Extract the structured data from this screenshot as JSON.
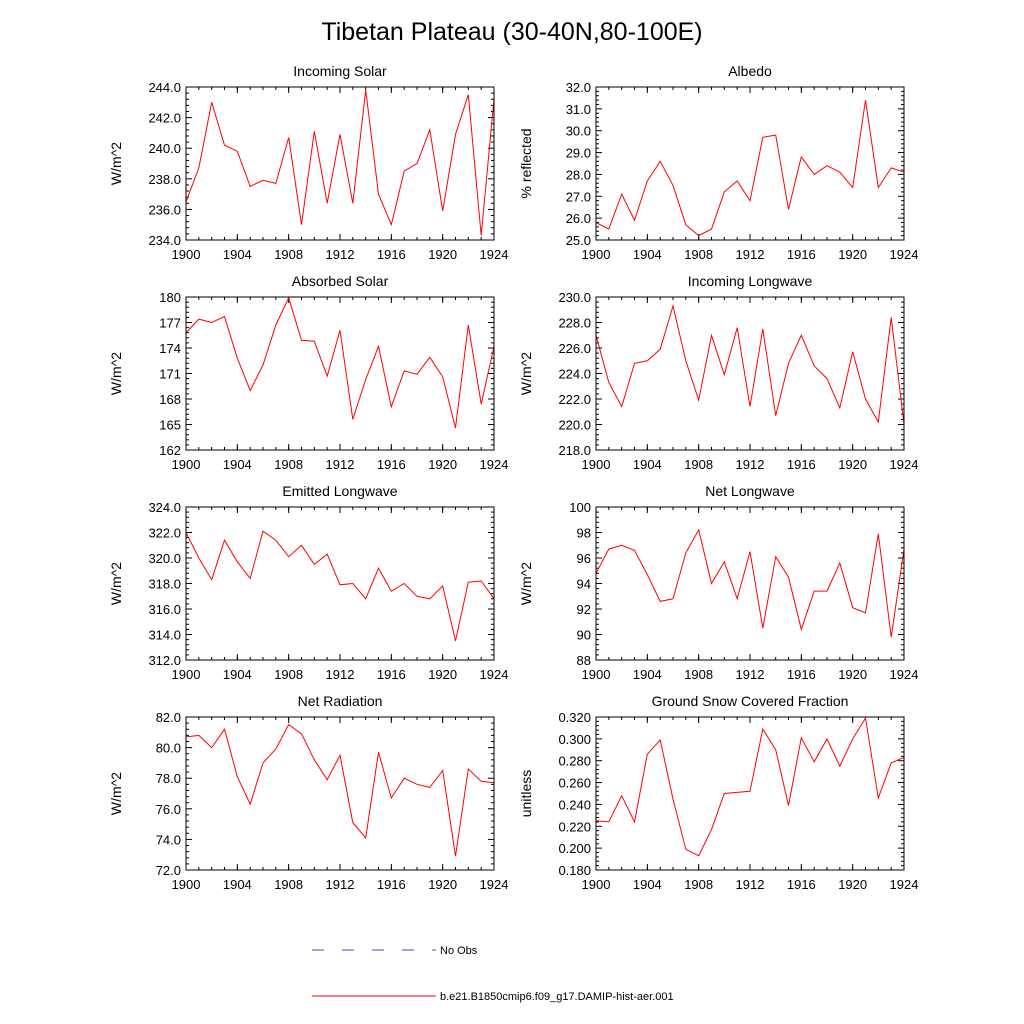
{
  "figure": {
    "title": "Tibetan Plateau (30-40N,80-100E)",
    "legend": [
      {
        "label": "No Obs",
        "color": "#3b4fb8",
        "style": "dashed"
      },
      {
        "label": "b.e21.B1850cmip6.f09_g17.DAMIP-hist-aer.001",
        "color": "#ff0000",
        "style": "solid"
      }
    ]
  },
  "chart_data": [
    {
      "type": "line",
      "title": "Incoming Solar",
      "ylabel": "W/m^2",
      "xlim": [
        1900,
        1924
      ],
      "ylim": [
        234,
        244
      ],
      "xticks": [
        "1900",
        "1904",
        "1908",
        "1912",
        "1916",
        "1920",
        "1924"
      ],
      "yticks": [
        "234.0",
        "236.0",
        "238.0",
        "240.0",
        "242.0",
        "244.0"
      ],
      "x": [
        1900,
        1901,
        1902,
        1903,
        1904,
        1905,
        1906,
        1907,
        1908,
        1909,
        1910,
        1911,
        1912,
        1913,
        1914,
        1915,
        1916,
        1917,
        1918,
        1919,
        1920,
        1921,
        1922,
        1923,
        1924
      ],
      "series": [
        {
          "color": "#ff0000",
          "values": [
            236.5,
            238.7,
            243.0,
            240.2,
            239.8,
            237.5,
            237.9,
            237.7,
            240.7,
            235.0,
            241.1,
            236.4,
            240.9,
            236.4,
            243.8,
            237.0,
            235.0,
            238.5,
            239.0,
            241.2,
            235.9,
            240.9,
            243.5,
            234.3,
            243.2
          ]
        }
      ]
    },
    {
      "type": "line",
      "title": "Albedo",
      "ylabel": "% reflected",
      "xlim": [
        1900,
        1924
      ],
      "ylim": [
        25,
        32
      ],
      "xticks": [
        "1900",
        "1904",
        "1908",
        "1912",
        "1916",
        "1920",
        "1924"
      ],
      "yticks": [
        "25.0",
        "26.0",
        "27.0",
        "28.0",
        "29.0",
        "30.0",
        "31.0",
        "32.0"
      ],
      "x": [
        1900,
        1901,
        1902,
        1903,
        1904,
        1905,
        1906,
        1907,
        1908,
        1909,
        1910,
        1911,
        1912,
        1913,
        1914,
        1915,
        1916,
        1917,
        1918,
        1919,
        1920,
        1921,
        1922,
        1923,
        1924
      ],
      "series": [
        {
          "color": "#ff0000",
          "values": [
            25.8,
            25.5,
            27.1,
            25.9,
            27.7,
            28.6,
            27.5,
            25.7,
            25.2,
            25.5,
            27.2,
            27.7,
            26.8,
            29.7,
            29.8,
            26.4,
            28.8,
            28.0,
            28.4,
            28.1,
            27.4,
            31.4,
            27.4,
            28.3,
            28.1
          ]
        }
      ]
    },
    {
      "type": "line",
      "title": "Absorbed Solar",
      "ylabel": "W/m^2",
      "xlim": [
        1900,
        1924
      ],
      "ylim": [
        162,
        180
      ],
      "xticks": [
        "1900",
        "1904",
        "1908",
        "1912",
        "1916",
        "1920",
        "1924"
      ],
      "yticks": [
        "162",
        "165",
        "168",
        "171",
        "174",
        "177",
        "180"
      ],
      "x": [
        1900,
        1901,
        1902,
        1903,
        1904,
        1905,
        1906,
        1907,
        1908,
        1909,
        1910,
        1911,
        1912,
        1913,
        1914,
        1915,
        1916,
        1917,
        1918,
        1919,
        1920,
        1921,
        1922,
        1923,
        1924
      ],
      "series": [
        {
          "color": "#ff0000",
          "values": [
            175.8,
            177.4,
            177.0,
            177.7,
            172.8,
            169.0,
            172.0,
            176.7,
            179.9,
            174.9,
            174.8,
            170.7,
            176.1,
            165.6,
            170.3,
            174.2,
            167.1,
            171.3,
            170.9,
            172.9,
            170.6,
            164.6,
            176.7,
            167.4,
            174.2
          ]
        }
      ]
    },
    {
      "type": "line",
      "title": "Incoming Longwave",
      "ylabel": "W/m^2",
      "xlim": [
        1900,
        1924
      ],
      "ylim": [
        218,
        230
      ],
      "xticks": [
        "1900",
        "1904",
        "1908",
        "1912",
        "1916",
        "1920",
        "1924"
      ],
      "yticks": [
        "218.0",
        "220.0",
        "222.0",
        "224.0",
        "226.0",
        "228.0",
        "230.0"
      ],
      "x": [
        1900,
        1901,
        1902,
        1903,
        1904,
        1905,
        1906,
        1907,
        1908,
        1909,
        1910,
        1911,
        1912,
        1913,
        1914,
        1915,
        1916,
        1917,
        1918,
        1919,
        1920,
        1921,
        1922,
        1923,
        1924
      ],
      "series": [
        {
          "color": "#ff0000",
          "values": [
            227.0,
            223.3,
            221.4,
            224.8,
            225.0,
            225.9,
            229.3,
            225.0,
            221.9,
            227.0,
            223.9,
            227.6,
            221.4,
            227.5,
            220.7,
            224.8,
            227.0,
            224.6,
            223.6,
            221.3,
            225.7,
            222.0,
            220.2,
            228.4,
            220.0
          ]
        }
      ]
    },
    {
      "type": "line",
      "title": "Emitted Longwave",
      "ylabel": "W/m^2",
      "xlim": [
        1900,
        1924
      ],
      "ylim": [
        312,
        324
      ],
      "xticks": [
        "1900",
        "1904",
        "1908",
        "1912",
        "1916",
        "1920",
        "1924"
      ],
      "yticks": [
        "312.0",
        "314.0",
        "316.0",
        "318.0",
        "320.0",
        "322.0",
        "324.0"
      ],
      "x": [
        1900,
        1901,
        1902,
        1903,
        1904,
        1905,
        1906,
        1907,
        1908,
        1909,
        1910,
        1911,
        1912,
        1913,
        1914,
        1915,
        1916,
        1917,
        1918,
        1919,
        1920,
        1921,
        1922,
        1923,
        1924
      ],
      "series": [
        {
          "color": "#ff0000",
          "values": [
            322.0,
            320.0,
            318.3,
            321.4,
            319.7,
            318.4,
            322.1,
            321.4,
            320.1,
            321.0,
            319.5,
            320.3,
            317.9,
            318.0,
            316.8,
            319.2,
            317.4,
            318.0,
            317.0,
            316.8,
            317.8,
            313.5,
            318.1,
            318.2,
            316.8
          ]
        }
      ]
    },
    {
      "type": "line",
      "title": "Net Longwave",
      "ylabel": "W/m^2",
      "xlim": [
        1900,
        1924
      ],
      "ylim": [
        88,
        100
      ],
      "xticks": [
        "1900",
        "1904",
        "1908",
        "1912",
        "1916",
        "1920",
        "1924"
      ],
      "yticks": [
        "88",
        "90",
        "92",
        "94",
        "96",
        "98",
        "100"
      ],
      "x": [
        1900,
        1901,
        1902,
        1903,
        1904,
        1905,
        1906,
        1907,
        1908,
        1909,
        1910,
        1911,
        1912,
        1913,
        1914,
        1915,
        1916,
        1917,
        1918,
        1919,
        1920,
        1921,
        1922,
        1923,
        1924
      ],
      "series": [
        {
          "color": "#ff0000",
          "values": [
            94.8,
            96.7,
            97.0,
            96.6,
            94.7,
            92.6,
            92.8,
            96.4,
            98.2,
            94.0,
            95.7,
            92.8,
            96.5,
            90.5,
            96.1,
            94.5,
            90.4,
            93.4,
            93.4,
            95.6,
            92.1,
            91.7,
            97.9,
            89.8,
            96.7
          ]
        }
      ]
    },
    {
      "type": "line",
      "title": "Net Radiation",
      "ylabel": "W/m^2",
      "xlim": [
        1900,
        1924
      ],
      "ylim": [
        72,
        82
      ],
      "xticks": [
        "1900",
        "1904",
        "1908",
        "1912",
        "1916",
        "1920",
        "1924"
      ],
      "yticks": [
        "72.0",
        "74.0",
        "76.0",
        "78.0",
        "80.0",
        "82.0"
      ],
      "x": [
        1900,
        1901,
        1902,
        1903,
        1904,
        1905,
        1906,
        1907,
        1908,
        1909,
        1910,
        1911,
        1912,
        1913,
        1914,
        1915,
        1916,
        1917,
        1918,
        1919,
        1920,
        1921,
        1922,
        1923,
        1924
      ],
      "series": [
        {
          "color": "#ff0000",
          "values": [
            80.7,
            80.8,
            80.0,
            81.2,
            78.1,
            76.3,
            79.0,
            79.9,
            81.5,
            80.9,
            79.2,
            77.9,
            79.5,
            75.1,
            74.1,
            79.7,
            76.7,
            78.0,
            77.6,
            77.4,
            78.5,
            72.9,
            78.6,
            77.8,
            77.7
          ]
        }
      ]
    },
    {
      "type": "line",
      "title": "Ground Snow Covered Fraction",
      "ylabel": "unitless",
      "xlim": [
        1900,
        1924
      ],
      "ylim": [
        0.18,
        0.32
      ],
      "xticks": [
        "1900",
        "1904",
        "1908",
        "1912",
        "1916",
        "1920",
        "1924"
      ],
      "yticks": [
        "0.180",
        "0.200",
        "0.220",
        "0.240",
        "0.260",
        "0.280",
        "0.300",
        "0.320"
      ],
      "x": [
        1900,
        1901,
        1902,
        1903,
        1904,
        1905,
        1906,
        1907,
        1908,
        1909,
        1910,
        1911,
        1912,
        1913,
        1914,
        1915,
        1916,
        1917,
        1918,
        1919,
        1920,
        1921,
        1922,
        1923,
        1924
      ],
      "series": [
        {
          "color": "#ff0000",
          "values": [
            0.225,
            0.224,
            0.248,
            0.224,
            0.286,
            0.299,
            0.245,
            0.199,
            0.193,
            0.217,
            0.25,
            0.251,
            0.252,
            0.309,
            0.29,
            0.239,
            0.301,
            0.279,
            0.3,
            0.275,
            0.3,
            0.319,
            0.246,
            0.278,
            0.283
          ]
        }
      ]
    }
  ]
}
